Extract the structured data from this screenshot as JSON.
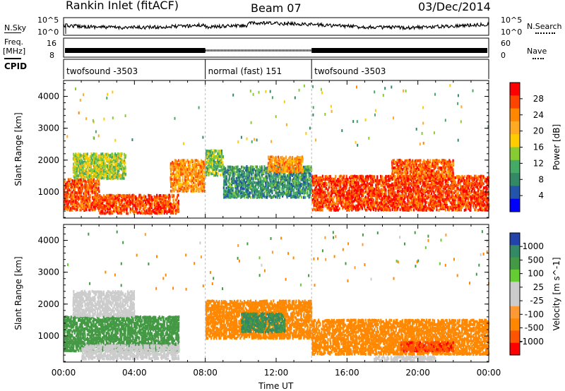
{
  "header": {
    "station": "Rankin Inlet (fitACF)",
    "beam": "Beam 07",
    "date": "03/Dec/2014"
  },
  "noise_panel": {
    "left_label": "N.Sky",
    "right_label": "N.Search",
    "left_ticks": [
      "10^5",
      "10^0"
    ],
    "right_ticks": [
      "10^5",
      "10^0"
    ],
    "sky_color": "#000000",
    "search_style": "dotted"
  },
  "freq_panel": {
    "left_label": "Freq.",
    "left_unit": "[MHz]",
    "right_label": "Nave",
    "left_ticks": [
      "16",
      "8"
    ],
    "right_ticks": [
      "60",
      "0"
    ]
  },
  "cpid_panel": {
    "label": "CPID",
    "segments": [
      {
        "name": "twofsound",
        "id": "-3503",
        "start_hour": 0,
        "end_hour": 8
      },
      {
        "name": "normal (fast)",
        "id": "151",
        "start_hour": 8,
        "end_hour": 14
      },
      {
        "name": "twofsound",
        "id": "-3503",
        "start_hour": 14,
        "end_hour": 24
      }
    ]
  },
  "x_axis": {
    "label": "Time UT",
    "ticks": [
      "00:00",
      "04:00",
      "08:00",
      "12:00",
      "16:00",
      "20:00",
      "00:00"
    ],
    "range_hours": [
      0,
      24
    ]
  },
  "chart_data": [
    {
      "type": "heatmap",
      "parameter": "Power",
      "colorbar_label": "Power [dB]",
      "ylabel": "Slant Range [km]",
      "yticks": [
        1000,
        2000,
        3000,
        4000
      ],
      "ylim": [
        180,
        4500
      ],
      "xlim_hours": [
        0,
        24
      ],
      "colorbar_ticks": [
        "28",
        "24",
        "20",
        "16",
        "12",
        "8",
        "4"
      ],
      "colorbar_colors": [
        "#ff0000",
        "#ff4400",
        "#ff8800",
        "#ffaa22",
        "#ffcc00",
        "#88cc33",
        "#44aa66",
        "#338866",
        "#2255aa",
        "#0000ff"
      ],
      "regions": [
        {
          "t0": 0.0,
          "t1": 2.0,
          "r0": 400,
          "r1": 1400,
          "level": 26
        },
        {
          "t0": 0.5,
          "t1": 3.5,
          "r0": 1400,
          "r1": 2200,
          "level": 14
        },
        {
          "t0": 2.0,
          "t1": 6.5,
          "r0": 300,
          "r1": 900,
          "level": 27
        },
        {
          "t0": 6.0,
          "t1": 8.0,
          "r0": 1000,
          "r1": 2000,
          "level": 22
        },
        {
          "t0": 8.0,
          "t1": 9.0,
          "r0": 1500,
          "r1": 2300,
          "level": 12
        },
        {
          "t0": 9.0,
          "t1": 14.0,
          "r0": 800,
          "r1": 1800,
          "level": 8
        },
        {
          "t0": 11.5,
          "t1": 13.5,
          "r0": 1600,
          "r1": 2100,
          "level": 22
        },
        {
          "t0": 14.0,
          "t1": 24.0,
          "r0": 400,
          "r1": 1500,
          "level": 27
        },
        {
          "t0": 18.5,
          "t1": 22.0,
          "r0": 1400,
          "r1": 2000,
          "level": 25
        }
      ]
    },
    {
      "type": "heatmap",
      "parameter": "Velocity",
      "colorbar_label": "Velocity [m s^-1]",
      "ylabel": "Slant Range [km]",
      "yticks": [
        1000,
        2000,
        3000,
        4000
      ],
      "ylim": [
        180,
        4500
      ],
      "xlim_hours": [
        0,
        24
      ],
      "colorbar_ticks": [
        "1000",
        "500",
        "100",
        "25",
        "-25",
        "-100",
        "-500",
        "-1000"
      ],
      "colorbar_colors": [
        "#2244aa",
        "#338866",
        "#449944",
        "#66cc33",
        "#cccccc",
        "#cccccc",
        "#ff9933",
        "#ff8800",
        "#ff5500",
        "#ff0000"
      ],
      "regions": [
        {
          "t0": 0.0,
          "t1": 6.5,
          "r0": 500,
          "r1": 1600,
          "level": 300
        },
        {
          "t0": 0.5,
          "t1": 4.0,
          "r0": 1600,
          "r1": 2400,
          "level": 0
        },
        {
          "t0": 1.0,
          "t1": 6.5,
          "r0": 250,
          "r1": 700,
          "level": 0
        },
        {
          "t0": 8.0,
          "t1": 14.0,
          "r0": 900,
          "r1": 2100,
          "level": -300
        },
        {
          "t0": 10.0,
          "t1": 12.5,
          "r0": 1100,
          "r1": 1700,
          "level": 500
        },
        {
          "t0": 14.0,
          "t1": 24.0,
          "r0": 400,
          "r1": 1500,
          "level": -300
        },
        {
          "t0": 19.0,
          "t1": 22.0,
          "r0": 500,
          "r1": 800,
          "level": -800
        },
        {
          "t0": 17.5,
          "t1": 21.0,
          "r0": 200,
          "r1": 350,
          "level": 0
        }
      ]
    }
  ]
}
